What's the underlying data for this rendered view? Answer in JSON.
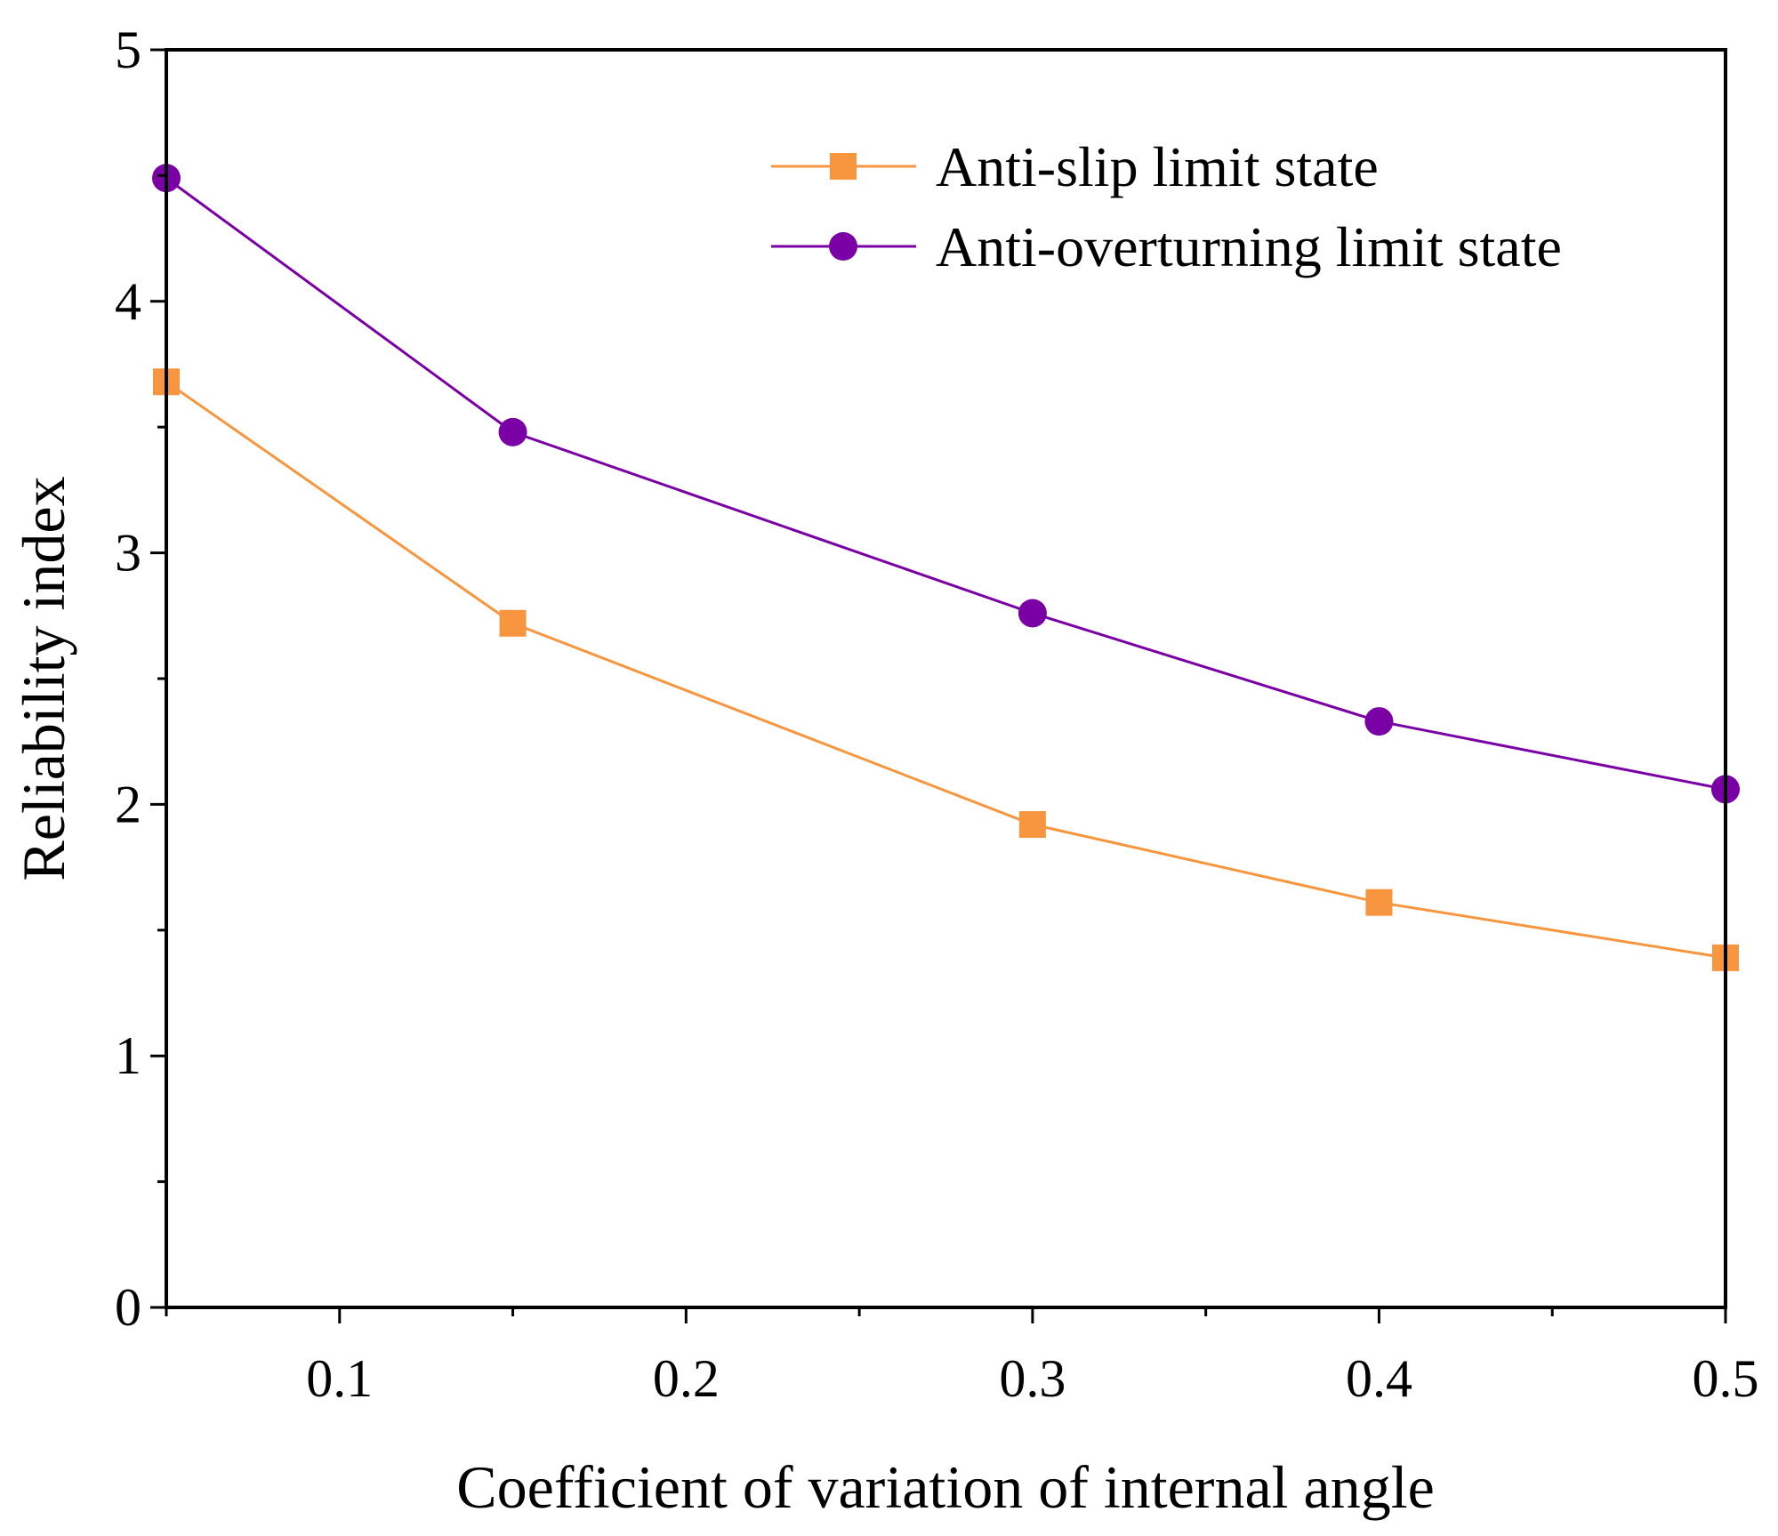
{
  "chart_data": {
    "type": "line",
    "title": "",
    "xlabel": "Coefficient of variation of internal angle",
    "ylabel": "Reliability index",
    "xlim": [
      0.05,
      0.5
    ],
    "ylim": [
      0,
      5
    ],
    "xticks": [
      0.1,
      0.2,
      0.3,
      0.4,
      0.5
    ],
    "xtick_labels": [
      "0.1",
      "0.2",
      "0.3",
      "0.4",
      "0.5"
    ],
    "yticks": [
      0,
      1,
      2,
      3,
      4,
      5
    ],
    "ytick_labels": [
      "0",
      "1",
      "2",
      "3",
      "4",
      "5"
    ],
    "grid": false,
    "legend_position": "top-right",
    "x": [
      0.05,
      0.15,
      0.3,
      0.4,
      0.5
    ],
    "series": [
      {
        "name": "Anti-slip limit state",
        "marker": "square",
        "color": "#F7963F",
        "values": [
          3.68,
          2.72,
          1.92,
          1.61,
          1.39
        ]
      },
      {
        "name": "Anti-overturning limit state",
        "marker": "circle",
        "color": "#7A00A6",
        "values": [
          4.49,
          3.48,
          2.76,
          2.33,
          2.06
        ]
      }
    ]
  }
}
